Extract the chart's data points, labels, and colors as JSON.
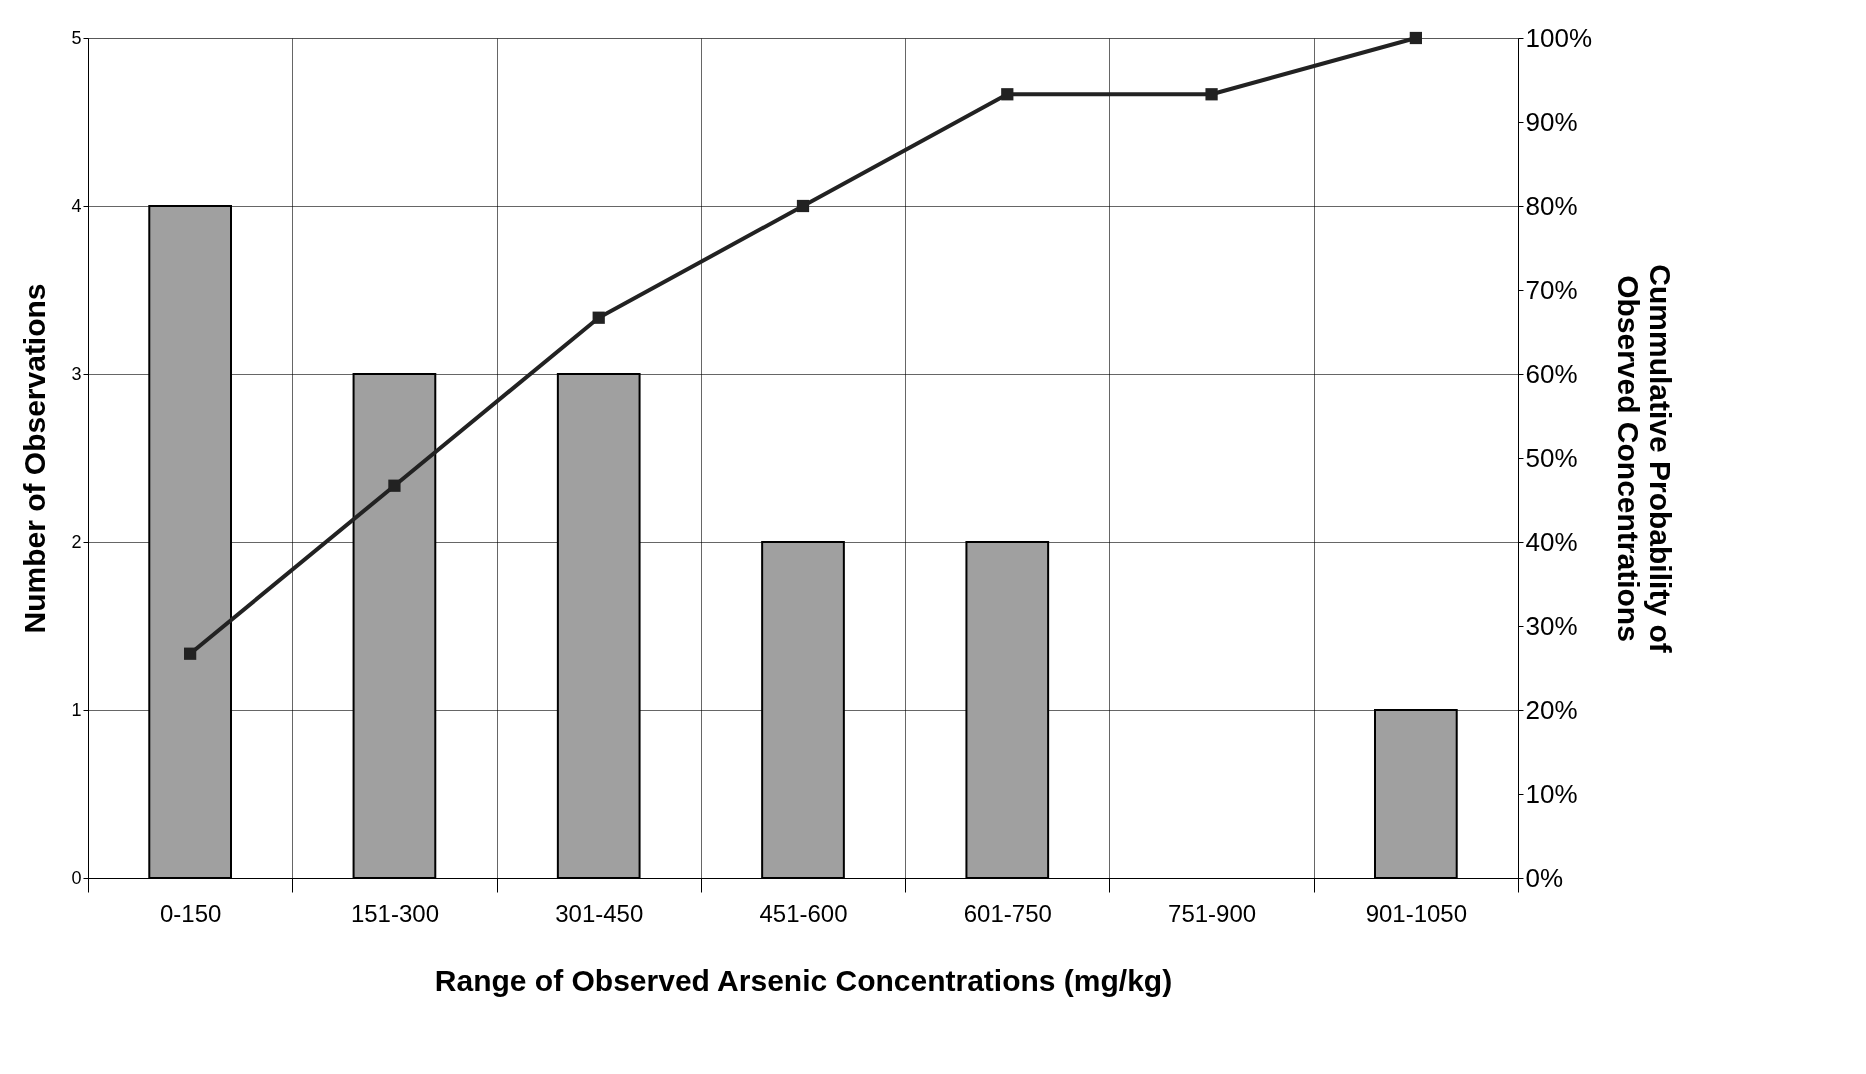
{
  "chart_data": {
    "type": "bar",
    "xlabel": "Range of Observed Arsenic Concentrations (mg/kg)",
    "ylabel": "Number of Observations",
    "y2label": "Cummulative Probability of Observed Concentrations",
    "categories": [
      "0-150",
      "151-300",
      "301-450",
      "451-600",
      "601-750",
      "751-900",
      "901-1050"
    ],
    "series": [
      {
        "color": "#a0a0a0",
        "values": [
          4,
          3,
          3,
          2,
          2,
          0,
          1
        ]
      },
      {
        "type": "line",
        "axis": "y2",
        "color": "#222222",
        "marker": "square",
        "values": [
          26.7,
          46.7,
          66.7,
          80,
          93.3,
          93.3,
          100
        ]
      }
    ],
    "ylim": [
      0,
      5
    ],
    "yticks": [
      0,
      1,
      2,
      3,
      4,
      5
    ],
    "y2lim": [
      0,
      100
    ],
    "y2ticks": [
      {
        "value": 0,
        "label": "0%"
      },
      {
        "value": 10,
        "label": "10%"
      },
      {
        "value": 20,
        "label": "20%"
      },
      {
        "value": 30,
        "label": "30%"
      },
      {
        "value": 40,
        "label": "40%"
      },
      {
        "value": 50,
        "label": "50%"
      },
      {
        "value": 60,
        "label": "60%"
      },
      {
        "value": 70,
        "label": "70%"
      },
      {
        "value": 80,
        "label": "80%"
      },
      {
        "value": 90,
        "label": "90%"
      },
      {
        "value": 100,
        "label": "100%"
      }
    ],
    "grid": true
  }
}
